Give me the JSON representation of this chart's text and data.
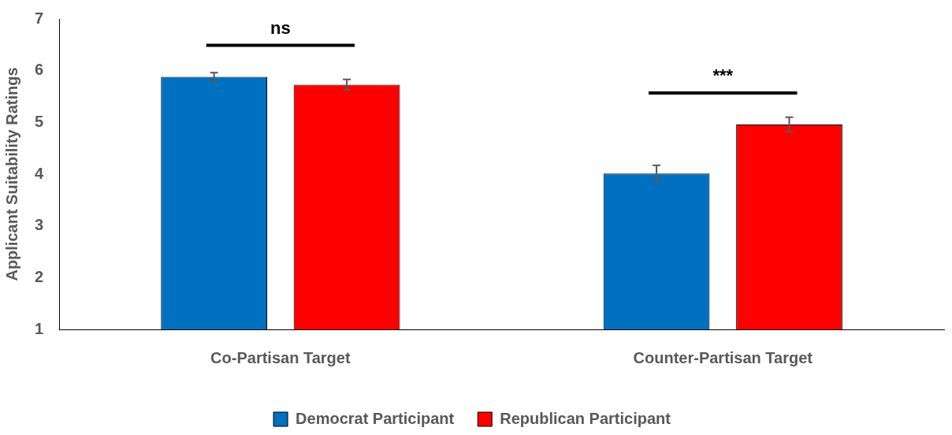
{
  "chart_data": {
    "type": "bar",
    "ylabel": "Applicant Suitability Ratings",
    "categories": [
      "Co-Partisan Target",
      "Counter-Partisan Target"
    ],
    "series": [
      {
        "name": "Democrat Participant",
        "color": "#0070c0",
        "values": [
          5.88,
          4.01
        ],
        "errors": [
          0.08,
          0.16
        ]
      },
      {
        "name": "Republican Participant",
        "color": "#ff0000",
        "values": [
          5.73,
          4.96
        ],
        "errors": [
          0.1,
          0.14
        ]
      }
    ],
    "ylim": [
      1,
      7
    ],
    "yticks": [
      1,
      2,
      3,
      4,
      5,
      6,
      7
    ],
    "grid": false,
    "legend": "bottom",
    "annotations": [
      "ns",
      "***"
    ]
  }
}
